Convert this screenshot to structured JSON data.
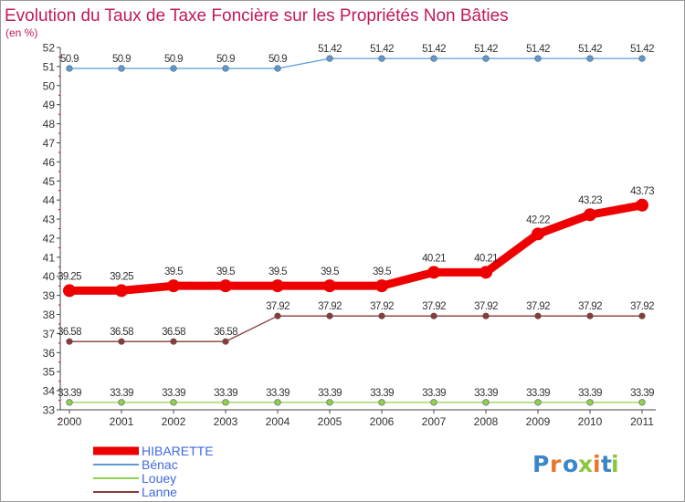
{
  "chart_data": {
    "type": "line",
    "title": "Evolution du Taux de Taxe Foncière sur les Propriétés Non Bâties",
    "unit": "(en %)",
    "xlabel": "",
    "ylabel": "(en %)",
    "ylim": [
      33,
      52
    ],
    "grid": false,
    "legend_position": "bottom-left",
    "categories": [
      "2000",
      "2001",
      "2002",
      "2003",
      "2004",
      "2005",
      "2006",
      "2007",
      "2008",
      "2009",
      "2010",
      "2011"
    ],
    "y_ticks": [
      33,
      34,
      35,
      36,
      37,
      38,
      39,
      40,
      41,
      42,
      43,
      44,
      45,
      46,
      47,
      48,
      49,
      50,
      51,
      52
    ],
    "series": [
      {
        "name": "HIBARETTE",
        "color": "#ee0000",
        "values": [
          39.25,
          39.25,
          39.5,
          39.5,
          39.5,
          39.5,
          39.5,
          40.21,
          40.21,
          42.22,
          43.23,
          43.73
        ],
        "labels": [
          "39.25",
          "39.25",
          "39.5",
          "39.5",
          "39.5",
          "39.5",
          "39.5",
          "40.21",
          "40.21",
          "42.22",
          "43.23",
          "43.73"
        ]
      },
      {
        "name": "Bénac",
        "color": "#5b9bd5",
        "values": [
          50.9,
          50.9,
          50.9,
          50.9,
          50.9,
          51.42,
          51.42,
          51.42,
          51.42,
          51.42,
          51.42,
          51.42
        ],
        "labels": [
          "50.9",
          "50.9",
          "50.9",
          "50.9",
          "50.9",
          "51.42",
          "51.42",
          "51.42",
          "51.42",
          "51.42",
          "51.42",
          "51.42"
        ]
      },
      {
        "name": "Louey",
        "color": "#8fd14f",
        "values": [
          33.39,
          33.39,
          33.39,
          33.39,
          33.39,
          33.39,
          33.39,
          33.39,
          33.39,
          33.39,
          33.39,
          33.39
        ],
        "labels": [
          "33.39",
          "33.39",
          "33.39",
          "33.39",
          "33.39",
          "33.39",
          "33.39",
          "33.39",
          "33.39",
          "33.39",
          "33.39",
          "33.39"
        ]
      },
      {
        "name": "Lanne",
        "color": "#8b3a3a",
        "values": [
          36.58,
          36.58,
          36.58,
          36.58,
          37.92,
          37.92,
          37.92,
          37.92,
          37.92,
          37.92,
          37.92,
          37.92
        ],
        "labels": [
          "36.58",
          "36.58",
          "36.58",
          "36.58",
          "37.92",
          "37.92",
          "37.92",
          "37.92",
          "37.92",
          "37.92",
          "37.92",
          "37.92"
        ]
      }
    ]
  },
  "legend": {
    "items": [
      {
        "label": "HIBARETTE",
        "color": "#ee0000"
      },
      {
        "label": "Bénac",
        "color": "#5b9bd5"
      },
      {
        "label": "Louey",
        "color": "#8fd14f"
      },
      {
        "label": "Lanne",
        "color": "#8b3a3a"
      }
    ],
    "text_color": "#4169e1"
  },
  "logo": {
    "letters": [
      "P",
      "r",
      "o",
      "x",
      "i",
      "t",
      "i"
    ],
    "colors": [
      "#3a86c8",
      "#e8762d",
      "#3a86c8",
      "#8cc63f",
      "#e8762d",
      "#3a86c8",
      "#8cc63f"
    ]
  }
}
